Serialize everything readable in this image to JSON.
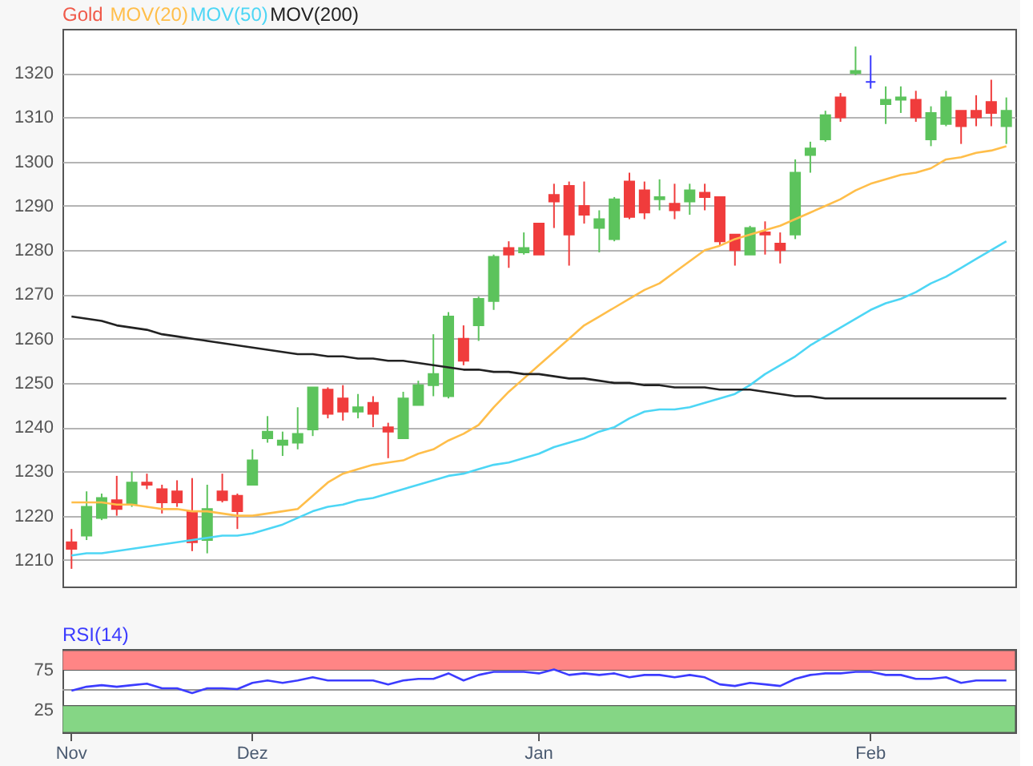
{
  "chart_data": [
    {
      "type": "candlestick",
      "grid": "y",
      "marker": "none",
      "line_style": "solid",
      "categories": [
        null,
        null,
        null,
        null,
        null,
        null,
        null,
        null,
        null,
        null,
        null,
        null,
        null,
        null,
        null,
        null,
        null,
        null,
        null,
        null,
        null,
        null,
        null,
        null,
        null,
        null,
        null,
        null,
        null,
        null,
        null,
        null,
        null,
        null,
        null,
        null,
        null,
        null,
        null,
        null,
        null,
        null,
        null,
        null,
        null,
        null,
        null,
        null,
        null,
        null,
        null,
        null,
        null,
        null,
        null,
        null,
        null,
        null,
        null,
        null,
        null,
        null,
        null
      ],
      "ylim": [
        1204,
        1330
      ],
      "yticks": [
        1210,
        1220,
        1230,
        1240,
        1250,
        1260,
        1270,
        1280,
        1290,
        1300,
        1310,
        1320
      ],
      "series": [
        {
          "name": "Gold",
          "color": "#f05a4a",
          "ohlc": [
            [
              1214,
              1217,
              1208,
              1212.5
            ],
            [
              1215.5,
              1225.5,
              1214.5,
              1222
            ],
            [
              1219.5,
              1225,
              1219,
              1224
            ],
            [
              1223.5,
              1229,
              1220,
              1221.5
            ],
            [
              1222.5,
              1230,
              1222,
              1227.5
            ],
            [
              1227.5,
              1229.5,
              1226,
              1227
            ],
            [
              1226,
              1227,
              1220.5,
              1223
            ],
            [
              1225.5,
              1228,
              1222,
              1223
            ],
            [
              1221,
              1228.5,
              1212,
              1214
            ],
            [
              1214.5,
              1227,
              1211.5,
              1221.5
            ],
            [
              1225.5,
              1229.5,
              1223,
              1223.5
            ],
            [
              1224.5,
              1225,
              1217,
              1221
            ],
            [
              1227,
              1235,
              1227,
              1232.5
            ],
            [
              1237.5,
              1242.5,
              1236.5,
              1239
            ],
            [
              1236,
              1239,
              1233.5,
              1237
            ],
            [
              1236.5,
              1244.5,
              1235,
              1238.5
            ],
            [
              1239.5,
              1249,
              1238,
              1249
            ],
            [
              1248.5,
              1249,
              1242,
              1243
            ],
            [
              1246.5,
              1249.5,
              1241.5,
              1243.5
            ],
            [
              1243.5,
              1247.5,
              1242,
              1244.5
            ],
            [
              1245.5,
              1247,
              1240,
              1243
            ],
            [
              1240,
              1241,
              1233,
              1239
            ],
            [
              1237.5,
              1248,
              1237.5,
              1246.5
            ],
            [
              1245,
              1250.5,
              1245,
              1249.5
            ],
            [
              1249.5,
              1261,
              1247,
              1252
            ],
            [
              1247,
              1266,
              1246.5,
              1265
            ],
            [
              1260,
              1263,
              1254,
              1255
            ],
            [
              1263,
              1269.5,
              1259.5,
              1269
            ],
            [
              1268.5,
              1279,
              1266.5,
              1278.5
            ],
            [
              1280.5,
              1282,
              1276,
              1279
            ],
            [
              1279.5,
              1284,
              1279,
              1280.5
            ],
            [
              1286,
              1286,
              1279,
              1279
            ],
            [
              1292.5,
              1295,
              1285,
              1291
            ],
            [
              1294.5,
              1295.5,
              1276.5,
              1283.5
            ],
            [
              1290,
              1295.5,
              1286,
              1288
            ],
            [
              1285,
              1289,
              1279.5,
              1287
            ],
            [
              1282.5,
              1292,
              1282,
              1291.5
            ],
            [
              1295.5,
              1297.5,
              1287,
              1287.5
            ],
            [
              1293.5,
              1295.5,
              1287,
              1288.5
            ],
            [
              1291.5,
              1296,
              1289,
              1292
            ],
            [
              1290.5,
              1295,
              1287,
              1289
            ],
            [
              1291,
              1295,
              1288,
              1293.5
            ],
            [
              1293,
              1295,
              1289,
              1292
            ],
            [
              1292,
              1292,
              1281,
              1282
            ],
            [
              1283.5,
              1283.5,
              1276.5,
              1280
            ],
            [
              1279,
              1285.5,
              1279,
              1285
            ],
            [
              1284,
              1286.5,
              1279,
              1283.5
            ],
            [
              1281.5,
              1284,
              1277,
              1280
            ],
            [
              1283.5,
              1300.5,
              1282.5,
              1297.5
            ],
            [
              1301.5,
              1304.5,
              1297.5,
              1303
            ],
            [
              1305,
              1311.5,
              1304.5,
              1310.5
            ],
            [
              1314.5,
              1315.5,
              1309,
              1310
            ],
            [
              1320,
              1326,
              1319.5,
              1320.5
            ],
            [
              1318,
              1324,
              1316.5,
              1318
            ],
            [
              1313,
              1317,
              1308.5,
              1314
            ],
            [
              1314,
              1317,
              1311,
              1314.5
            ],
            [
              1314,
              1316,
              1309,
              1310
            ],
            [
              1305,
              1312.5,
              1303.5,
              1311
            ],
            [
              1308.5,
              1316,
              1308,
              1314.5
            ],
            [
              1311.5,
              1311.5,
              1304,
              1308
            ],
            [
              1311.5,
              1315,
              1308,
              1310
            ],
            [
              1313.5,
              1318.5,
              1308,
              1311
            ],
            [
              1308,
              1314.5,
              1304,
              1311.5
            ]
          ],
          "colors": [
            "#f03c3c",
            "#5cc35c",
            "#5cc35c",
            "#f03c3c",
            "#5cc35c",
            "#f03c3c",
            "#f03c3c",
            "#f03c3c",
            "#f03c3c",
            "#5cc35c",
            "#f03c3c",
            "#f03c3c",
            "#5cc35c",
            "#5cc35c",
            "#5cc35c",
            "#5cc35c",
            "#5cc35c",
            "#f03c3c",
            "#f03c3c",
            "#5cc35c",
            "#f03c3c",
            "#f03c3c",
            "#5cc35c",
            "#5cc35c",
            "#5cc35c",
            "#5cc35c",
            "#f03c3c",
            "#5cc35c",
            "#5cc35c",
            "#f03c3c",
            "#5cc35c",
            "#f03c3c",
            "#f03c3c",
            "#f03c3c",
            "#f03c3c",
            "#5cc35c",
            "#5cc35c",
            "#f03c3c",
            "#f03c3c",
            "#5cc35c",
            "#f03c3c",
            "#5cc35c",
            "#f03c3c",
            "#f03c3c",
            "#f03c3c",
            "#5cc35c",
            "#f03c3c",
            "#f03c3c",
            "#5cc35c",
            "#5cc35c",
            "#5cc35c",
            "#f03c3c",
            "#5cc35c",
            "#3a3aff",
            "#5cc35c",
            "#5cc35c",
            "#f03c3c",
            "#5cc35c",
            "#5cc35c",
            "#f03c3c",
            "#f03c3c",
            "#f03c3c",
            "#5cc35c"
          ]
        },
        {
          "name": "MOV(20)",
          "type": "line",
          "color": "#ffbe4a",
          "values": [
            1223,
            1223,
            1223,
            1222.5,
            1222.5,
            1222,
            1221.5,
            1221.5,
            1221,
            1221,
            1220.5,
            1220,
            1220,
            1220.5,
            1221,
            1221.5,
            1224.5,
            1227.5,
            1229.5,
            1230.5,
            1231.5,
            1232,
            1232.5,
            1234,
            1235,
            1237,
            1238.5,
            1240.5,
            1244.5,
            1248,
            1251,
            1254,
            1257,
            1260,
            1263,
            1265,
            1267,
            1269,
            1271,
            1272.5,
            1275,
            1277.5,
            1280,
            1281,
            1282.5,
            1283.5,
            1284.5,
            1285.5,
            1287,
            1288.5,
            1290,
            1291.5,
            1293.5,
            1295,
            1296,
            1297,
            1297.5,
            1298.5,
            1300.5,
            1301,
            1302,
            1302.5,
            1303.5
          ]
        },
        {
          "name": "MOV(50)",
          "type": "line",
          "color": "#4dd6f5",
          "values": [
            1211,
            1211.5,
            1211.5,
            1212,
            1212.5,
            1213,
            1213.5,
            1214,
            1214.5,
            1215,
            1215.5,
            1215.5,
            1216,
            1217,
            1218,
            1219.5,
            1221,
            1222,
            1222.5,
            1223.5,
            1224,
            1225,
            1226,
            1227,
            1228,
            1229,
            1229.5,
            1230.5,
            1231.5,
            1232,
            1233,
            1234,
            1235.5,
            1236.5,
            1237.5,
            1239,
            1240,
            1242,
            1243.5,
            1244,
            1244,
            1244.5,
            1245.5,
            1246.5,
            1247.5,
            1249.5,
            1252,
            1254,
            1256,
            1258.5,
            1260.5,
            1262.5,
            1264.5,
            1266.5,
            1268,
            1269,
            1270.5,
            1272.5,
            1274,
            1276,
            1278,
            1280,
            1282
          ]
        },
        {
          "name": "MOV(200)",
          "type": "line",
          "color": "#222222",
          "values": [
            1265,
            1264.5,
            1264,
            1263,
            1262.5,
            1262,
            1261,
            1260.5,
            1260,
            1259.5,
            1259,
            1258.5,
            1258,
            1257.5,
            1257,
            1256.5,
            1256.5,
            1256,
            1256,
            1255.5,
            1255.5,
            1255,
            1255,
            1254.5,
            1254,
            1253.5,
            1253,
            1253,
            1252.5,
            1252.5,
            1252,
            1252,
            1251.5,
            1251,
            1251,
            1250.5,
            1250,
            1250,
            1249.5,
            1249.5,
            1249,
            1249,
            1249,
            1248.5,
            1248.5,
            1248.5,
            1248,
            1247.5,
            1247,
            1247,
            1246.5,
            1246.5,
            1246.5,
            1246.5,
            1246.5,
            1246.5,
            1246.5,
            1246.5,
            1246.5,
            1246.5,
            1246.5,
            1246.5,
            1246.5
          ]
        }
      ]
    },
    {
      "type": "line",
      "marker": "none",
      "line_style": "solid",
      "categories": [
        "Nov",
        null,
        null,
        null,
        null,
        null,
        null,
        null,
        null,
        null,
        null,
        null,
        "Dez",
        null,
        null,
        null,
        null,
        null,
        null,
        null,
        null,
        null,
        null,
        null,
        null,
        null,
        null,
        null,
        null,
        null,
        null,
        "Jan",
        null,
        null,
        null,
        null,
        null,
        null,
        null,
        null,
        null,
        null,
        null,
        null,
        null,
        null,
        null,
        null,
        null,
        null,
        null,
        null,
        null,
        "Feb",
        null,
        null,
        null,
        null,
        null,
        null,
        null,
        null,
        null
      ],
      "ylim": [
        -4,
        102
      ],
      "yticks": [
        25,
        75
      ],
      "bands": [
        {
          "axis": "y",
          "from": 75,
          "to": 100,
          "color": "#ff8585"
        },
        {
          "axis": "y",
          "from": -4,
          "to": 30,
          "color": "#85d685"
        }
      ],
      "ref_lines": [
        {
          "axis": "y",
          "value": 50,
          "color": "#999999"
        }
      ],
      "series": [
        {
          "name": "RSI(14)",
          "color": "#3c3cff",
          "values": [
            49,
            54,
            56,
            54,
            56,
            58,
            52,
            52,
            46,
            52,
            52,
            51,
            59,
            62,
            59,
            62,
            66,
            62,
            62,
            62,
            62,
            57,
            62,
            64,
            64,
            71,
            62,
            69,
            73,
            73,
            73,
            71,
            76,
            69,
            71,
            69,
            71,
            66,
            69,
            69,
            66,
            69,
            66,
            57,
            55,
            59,
            57,
            55,
            64,
            69,
            71,
            71,
            73,
            73,
            69,
            69,
            64,
            64,
            66,
            59,
            62,
            62,
            62
          ]
        }
      ]
    }
  ]
}
